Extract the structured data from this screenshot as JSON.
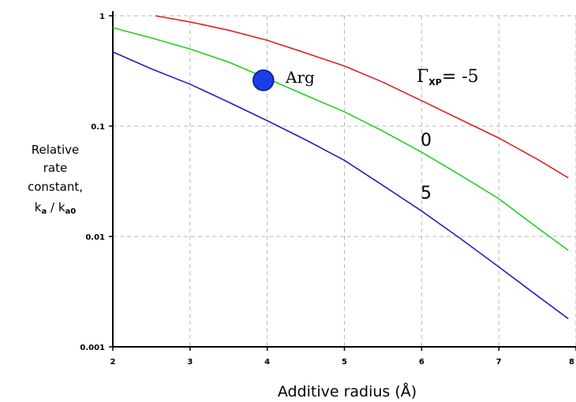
{
  "chart_data": {
    "type": "line",
    "title": "",
    "xlabel": "Additive radius (Å)",
    "ylabel_lines": [
      "Relative",
      "rate",
      "constant,"
    ],
    "ylabel_ratio": {
      "num": "k",
      "num_sub": "a",
      "sep": " / ",
      "den": "k",
      "den_sub": "a0"
    },
    "xlim": [
      2,
      8
    ],
    "ylim": [
      0.001,
      1
    ],
    "yscale": "log",
    "grid": true,
    "x_ticks": [
      2,
      3,
      4,
      5,
      6,
      7,
      8
    ],
    "x_tick_labels": [
      "2",
      "3",
      "4",
      "5",
      "6",
      "7",
      "8"
    ],
    "y_ticks": [
      0.001,
      0.01,
      0.1,
      1
    ],
    "y_tick_labels": [
      "0.001",
      "0.01",
      "0.1",
      "1"
    ],
    "series": [
      {
        "name": "-5",
        "color": "#e02020",
        "x": [
          2.55,
          3.0,
          3.5,
          4.0,
          4.5,
          5.0,
          5.5,
          6.0,
          6.5,
          7.0,
          7.5,
          7.9
        ],
        "y": [
          1.0,
          0.88,
          0.74,
          0.6,
          0.46,
          0.35,
          0.25,
          0.17,
          0.115,
          0.078,
          0.05,
          0.034
        ]
      },
      {
        "name": "0",
        "color": "#20d020",
        "x": [
          2.0,
          2.5,
          3.0,
          3.5,
          4.0,
          4.5,
          5.0,
          5.5,
          6.0,
          6.5,
          7.0,
          7.5,
          7.9
        ],
        "y": [
          0.78,
          0.63,
          0.5,
          0.38,
          0.27,
          0.19,
          0.135,
          0.09,
          0.058,
          0.036,
          0.022,
          0.012,
          0.0075
        ]
      },
      {
        "name": "5",
        "color": "#2020c0",
        "x": [
          2.0,
          2.5,
          3.0,
          3.5,
          4.0,
          4.5,
          5.0,
          5.5,
          6.0,
          6.5,
          7.0,
          7.5,
          7.9
        ],
        "y": [
          0.47,
          0.33,
          0.24,
          0.165,
          0.112,
          0.075,
          0.049,
          0.029,
          0.017,
          0.0096,
          0.0053,
          0.0029,
          0.0018
        ]
      }
    ],
    "point": {
      "label": "Arg",
      "x": 3.95,
      "y": 0.26,
      "color": "#1a3ee8"
    },
    "curve_labels": {
      "gamma_symbol": "Γ",
      "gamma_sub": "XP",
      "gamma_value": "= -5",
      "zero": "0",
      "five": "5"
    }
  }
}
